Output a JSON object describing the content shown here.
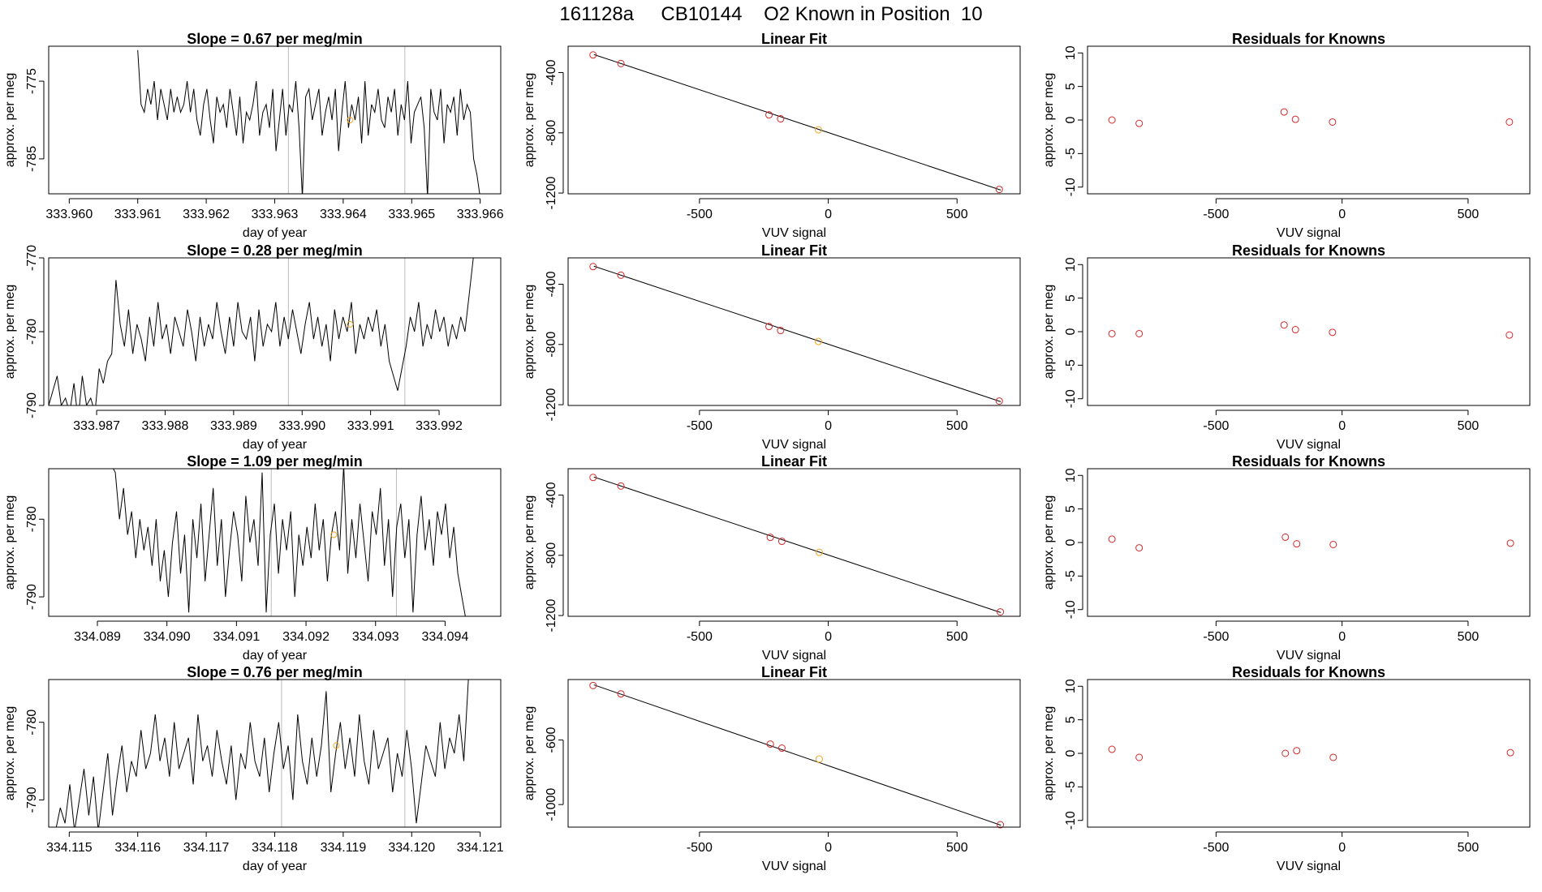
{
  "main_title": "161128a     CB10144    O2 Known in Position  10",
  "colors": {
    "trace": "#000000",
    "known_points": "#d62728",
    "highlight_point": "#f5a623",
    "marker_line": "#bbbbbb"
  },
  "chart_data": [
    {
      "type": "line",
      "row": 1,
      "title": "Slope =  0.67  per meg/min",
      "xlabel": "day of year",
      "ylabel": "approx. per meg",
      "xlim": [
        333.9597,
        333.9663
      ],
      "ylim": [
        -789.5,
        -770.5
      ],
      "xticks": [
        "333.960",
        "333.961",
        "333.962",
        "333.963",
        "333.964",
        "333.965",
        "333.966"
      ],
      "xtick_values": [
        333.96,
        333.961,
        333.962,
        333.963,
        333.964,
        333.965,
        333.966
      ],
      "yticks": [
        "-785",
        "-775"
      ],
      "ytick_values": [
        -785,
        -775
      ],
      "markers_x": [
        333.9632,
        333.9649
      ],
      "highlight": {
        "x": 333.9641,
        "y": -780
      },
      "x_start": 333.961,
      "x_end": 333.966,
      "series": [
        -771,
        -778,
        -779,
        -776,
        -778,
        -775,
        -780,
        -776,
        -778,
        -780,
        -776,
        -779,
        -777,
        -779,
        -778,
        -775,
        -779,
        -776,
        -780,
        -782,
        -778,
        -776,
        -780,
        -783,
        -777,
        -779,
        -778,
        -781,
        -776,
        -779,
        -782,
        -777,
        -783,
        -779,
        -780,
        -778,
        -775,
        -782,
        -779,
        -778,
        -781,
        -776,
        -784,
        -780,
        -776,
        -782,
        -778,
        -779,
        -775,
        -781,
        -790,
        -777,
        -776,
        -780,
        -778,
        -776,
        -782,
        -779,
        -777,
        -780,
        -776,
        -784,
        -779,
        -775,
        -781,
        -778,
        -780,
        -777,
        -783,
        -775,
        -782,
        -778,
        -779,
        -776,
        -780,
        -781,
        -777,
        -779,
        -776,
        -782,
        -778,
        -780,
        -775,
        -783,
        -779,
        -778,
        -777,
        -781,
        -790,
        -776,
        -779,
        -780,
        -776,
        -783,
        -778,
        -779,
        -777,
        -782,
        -776,
        -780,
        -778,
        -779,
        -785,
        -787,
        -790
      ]
    },
    {
      "type": "scatter",
      "row": 1,
      "title": "Linear Fit",
      "xlabel": "VUV signal",
      "ylabel": "approx. per meg",
      "xlim": [
        -1010,
        745
      ],
      "ylim": [
        -1205,
        -225
      ],
      "xticks": [
        "-500",
        "0",
        "500"
      ],
      "xtick_values": [
        -500,
        0,
        500
      ],
      "yticks": [
        "-1200",
        "-800",
        "-400"
      ],
      "ytick_values": [
        -1200,
        -800,
        -400
      ],
      "fit": {
        "x": [
          -910,
          670
        ],
        "y": [
          -280,
          -1180
        ]
      },
      "points": {
        "x": [
          -913,
          -805,
          -230,
          -185,
          -38,
          664
        ],
        "y": [
          -283,
          -340,
          -681,
          -707,
          -780,
          -1176
        ]
      },
      "highlight_index": 4
    },
    {
      "type": "scatter",
      "row": 1,
      "title": "Residuals for Knowns",
      "xlabel": "VUV signal",
      "ylabel": "approx. per meg",
      "xlim": [
        -1010,
        745
      ],
      "ylim": [
        -11,
        11
      ],
      "xticks": [
        "-500",
        "0",
        "500"
      ],
      "xtick_values": [
        -500,
        0,
        500
      ],
      "yticks": [
        "-10",
        "-5",
        "0",
        "5",
        "10"
      ],
      "ytick_values": [
        -10,
        -5,
        0,
        5,
        10
      ],
      "points": {
        "x": [
          -913,
          -805,
          -230,
          -185,
          -38,
          664
        ],
        "y": [
          0,
          -0.5,
          1.2,
          0.1,
          -0.3,
          -0.3
        ]
      }
    },
    {
      "type": "line",
      "row": 2,
      "title": "Slope =  0.28  per meg/min",
      "xlabel": "day of year",
      "ylabel": "approx. per meg",
      "xlim": [
        333.9863,
        333.9929
      ],
      "ylim": [
        -790,
        -770
      ],
      "xticks": [
        "333.987",
        "333.988",
        "333.989",
        "333.990",
        "333.991",
        "333.992"
      ],
      "xtick_values": [
        333.987,
        333.988,
        333.989,
        333.99,
        333.991,
        333.992
      ],
      "yticks": [
        "-790",
        "-780",
        "-770"
      ],
      "ytick_values": [
        -790,
        -780,
        -770
      ],
      "markers_x": [
        333.9898,
        333.9915
      ],
      "highlight": {
        "x": 333.9907,
        "y": -779
      },
      "x_start": 333.9863,
      "x_end": 333.9925,
      "series": [
        -790,
        -788,
        -786,
        -790,
        -789,
        -791,
        -787,
        -792,
        -786,
        -790,
        -789,
        -791,
        -785,
        -787,
        -784,
        -783,
        -773,
        -779,
        -782,
        -777,
        -783,
        -779,
        -781,
        -784,
        -778,
        -782,
        -776,
        -781,
        -779,
        -783,
        -778,
        -780,
        -782,
        -777,
        -780,
        -784,
        -778,
        -782,
        -779,
        -781,
        -776,
        -780,
        -783,
        -778,
        -782,
        -776,
        -780,
        -781,
        -778,
        -784,
        -777,
        -782,
        -779,
        -780,
        -776,
        -782,
        -778,
        -781,
        -777,
        -780,
        -783,
        -779,
        -776,
        -781,
        -778,
        -782,
        -779,
        -784,
        -777,
        -781,
        -778,
        -780,
        -776,
        -783,
        -779,
        -781,
        -778,
        -780,
        -777,
        -782,
        -779,
        -784,
        -786,
        -788,
        -785,
        -782,
        -778,
        -780,
        -776,
        -782,
        -779,
        -781,
        -777,
        -780,
        -778,
        -782,
        -779,
        -781,
        -778,
        -780,
        -775,
        -770
      ]
    },
    {
      "type": "scatter",
      "row": 2,
      "title": "Linear Fit",
      "xlabel": "VUV signal",
      "ylabel": "approx. per meg",
      "xlim": [
        -1010,
        745
      ],
      "ylim": [
        -1205,
        -225
      ],
      "xticks": [
        "-500",
        "0",
        "500"
      ],
      "xtick_values": [
        -500,
        0,
        500
      ],
      "yticks": [
        "-1200",
        "-800",
        "-400"
      ],
      "ytick_values": [
        -1200,
        -800,
        -400
      ],
      "fit": {
        "x": [
          -910,
          670
        ],
        "y": [
          -280,
          -1180
        ]
      },
      "points": {
        "x": [
          -913,
          -805,
          -230,
          -185,
          -38,
          664
        ],
        "y": [
          -283,
          -340,
          -681,
          -707,
          -780,
          -1176
        ]
      },
      "highlight_index": 4
    },
    {
      "type": "scatter",
      "row": 2,
      "title": "Residuals for Knowns",
      "xlabel": "VUV signal",
      "ylabel": "approx. per meg",
      "xlim": [
        -1010,
        745
      ],
      "ylim": [
        -11,
        11
      ],
      "xticks": [
        "-500",
        "0",
        "500"
      ],
      "xtick_values": [
        -500,
        0,
        500
      ],
      "yticks": [
        "-10",
        "-5",
        "0",
        "5",
        "10"
      ],
      "ytick_values": [
        -10,
        -5,
        0,
        5,
        10
      ],
      "points": {
        "x": [
          -913,
          -805,
          -230,
          -185,
          -38,
          664
        ],
        "y": [
          -0.3,
          -0.3,
          1.0,
          0.3,
          -0.1,
          -0.5
        ]
      }
    },
    {
      "type": "line",
      "row": 3,
      "title": "Slope =  1.09  per meg/min",
      "xlabel": "day of year",
      "ylabel": "approx. per meg",
      "xlim": [
        334.0883,
        334.0948
      ],
      "ylim": [
        -792.5,
        -773.5
      ],
      "xticks": [
        "334.089",
        "334.090",
        "334.091",
        "334.092",
        "334.093",
        "334.094"
      ],
      "xtick_values": [
        334.089,
        334.09,
        334.091,
        334.092,
        334.093,
        334.094
      ],
      "yticks": [
        "-790",
        "-780"
      ],
      "ytick_values": [
        -790,
        -780
      ],
      "markers_x": [
        334.0915,
        334.0933
      ],
      "highlight": {
        "x": 334.0924,
        "y": -782
      },
      "x_start": 334.0892,
      "x_end": 334.0943,
      "series": [
        -773,
        -774,
        -780,
        -776,
        -782,
        -779,
        -785,
        -780,
        -784,
        -781,
        -786,
        -780,
        -788,
        -784,
        -790,
        -783,
        -779,
        -787,
        -782,
        -792,
        -780,
        -785,
        -778,
        -788,
        -782,
        -776,
        -786,
        -780,
        -790,
        -784,
        -779,
        -782,
        -788,
        -777,
        -783,
        -780,
        -786,
        -774,
        -792,
        -782,
        -778,
        -787,
        -780,
        -784,
        -779,
        -790,
        -782,
        -786,
        -781,
        -785,
        -778,
        -784,
        -780,
        -788,
        -782,
        -779,
        -784,
        -773,
        -787,
        -780,
        -785,
        -778,
        -783,
        -788,
        -779,
        -782,
        -776,
        -786,
        -780,
        -790,
        -781,
        -778,
        -785,
        -780,
        -792,
        -782,
        -777,
        -784,
        -780,
        -786,
        -779,
        -782,
        -778,
        -785,
        -781,
        -787,
        -790,
        -793
      ]
    },
    {
      "type": "scatter",
      "row": 3,
      "title": "Linear Fit",
      "xlabel": "VUV signal",
      "ylabel": "approx. per meg",
      "xlim": [
        -1010,
        745
      ],
      "ylim": [
        -1205,
        -225
      ],
      "xticks": [
        "-500",
        "0",
        "500"
      ],
      "xtick_values": [
        -500,
        0,
        500
      ],
      "yticks": [
        "-1200",
        "-800",
        "-400"
      ],
      "ytick_values": [
        -1200,
        -800,
        -400
      ],
      "fit": {
        "x": [
          -910,
          670
        ],
        "y": [
          -280,
          -1180
        ]
      },
      "points": {
        "x": [
          -913,
          -805,
          -225,
          -180,
          -35,
          668
        ],
        "y": [
          -283,
          -340,
          -681,
          -707,
          -780,
          -1176
        ]
      },
      "highlight_index": 4
    },
    {
      "type": "scatter",
      "row": 3,
      "title": "Residuals for Knowns",
      "xlabel": "VUV signal",
      "ylabel": "approx. per meg",
      "xlim": [
        -1010,
        745
      ],
      "ylim": [
        -11,
        11
      ],
      "xticks": [
        "-500",
        "0",
        "500"
      ],
      "xtick_values": [
        -500,
        0,
        500
      ],
      "yticks": [
        "-10",
        "-5",
        "0",
        "5",
        "10"
      ],
      "ytick_values": [
        -10,
        -5,
        0,
        5,
        10
      ],
      "points": {
        "x": [
          -913,
          -805,
          -225,
          -180,
          -35,
          668
        ],
        "y": [
          0.5,
          -0.8,
          0.8,
          -0.2,
          -0.3,
          -0.1
        ]
      }
    },
    {
      "type": "line",
      "row": 4,
      "title": "Slope =  0.76  per meg/min",
      "xlabel": "day of year",
      "ylabel": "approx. per meg",
      "xlim": [
        334.1147,
        334.1213
      ],
      "ylim": [
        -793.5,
        -774.5
      ],
      "xticks": [
        "334.115",
        "334.116",
        "334.117",
        "334.118",
        "334.119",
        "334.120",
        "334.121"
      ],
      "xtick_values": [
        334.115,
        334.116,
        334.117,
        334.118,
        334.119,
        334.12,
        334.121
      ],
      "yticks": [
        "-790",
        "-780"
      ],
      "ytick_values": [
        -790,
        -780
      ],
      "markers_x": [
        334.1181,
        334.1199
      ],
      "highlight": {
        "x": 334.1189,
        "y": -783
      },
      "x_start": 334.1148,
      "x_end": 334.1209,
      "series": [
        -794,
        -791,
        -793,
        -788,
        -794,
        -790,
        -786,
        -792,
        -787,
        -794,
        -789,
        -784,
        -792,
        -787,
        -783,
        -789,
        -785,
        -787,
        -781,
        -786,
        -784,
        -779,
        -785,
        -782,
        -787,
        -780,
        -786,
        -784,
        -782,
        -788,
        -779,
        -785,
        -783,
        -787,
        -781,
        -785,
        -788,
        -783,
        -790,
        -784,
        -786,
        -780,
        -785,
        -787,
        -782,
        -789,
        -784,
        -780,
        -786,
        -783,
        -790,
        -779,
        -785,
        -788,
        -782,
        -787,
        -783,
        -776,
        -789,
        -784,
        -780,
        -786,
        -782,
        -787,
        -779,
        -785,
        -788,
        -781,
        -786,
        -784,
        -782,
        -789,
        -784,
        -787,
        -781,
        -786,
        -793,
        -788,
        -783,
        -785,
        -787,
        -780,
        -786,
        -782,
        -784,
        -779,
        -785,
        -774,
        -770
      ]
    },
    {
      "type": "scatter",
      "row": 4,
      "title": "Linear Fit",
      "xlabel": "VUV signal",
      "ylabel": "approx. per meg",
      "xlim": [
        -1010,
        745
      ],
      "ylim": [
        -1140,
        -225
      ],
      "xticks": [
        "-500",
        "0",
        "500"
      ],
      "xtick_values": [
        -500,
        0,
        500
      ],
      "yticks": [
        "-1000",
        "-600"
      ],
      "ytick_values": [
        -1000,
        -600
      ],
      "fit": {
        "x": [
          -910,
          670
        ],
        "y": [
          -258,
          -1128
        ]
      },
      "points": {
        "x": [
          -913,
          -805,
          -225,
          -180,
          -35,
          668
        ],
        "y": [
          -262,
          -314,
          -625,
          -650,
          -718,
          -1125
        ]
      },
      "highlight_index": 4
    },
    {
      "type": "scatter",
      "row": 4,
      "title": "Residuals for Knowns",
      "xlabel": "VUV signal",
      "ylabel": "approx. per meg",
      "xlim": [
        -1010,
        745
      ],
      "ylim": [
        -11,
        11
      ],
      "xticks": [
        "-500",
        "0",
        "500"
      ],
      "xtick_values": [
        -500,
        0,
        500
      ],
      "yticks": [
        "-10",
        "-5",
        "0",
        "5",
        "10"
      ],
      "ytick_values": [
        -10,
        -5,
        0,
        5,
        10
      ],
      "points": {
        "x": [
          -913,
          -805,
          -225,
          -180,
          -35,
          668
        ],
        "y": [
          0.6,
          -0.6,
          0.0,
          0.4,
          -0.6,
          0.1
        ]
      }
    }
  ]
}
